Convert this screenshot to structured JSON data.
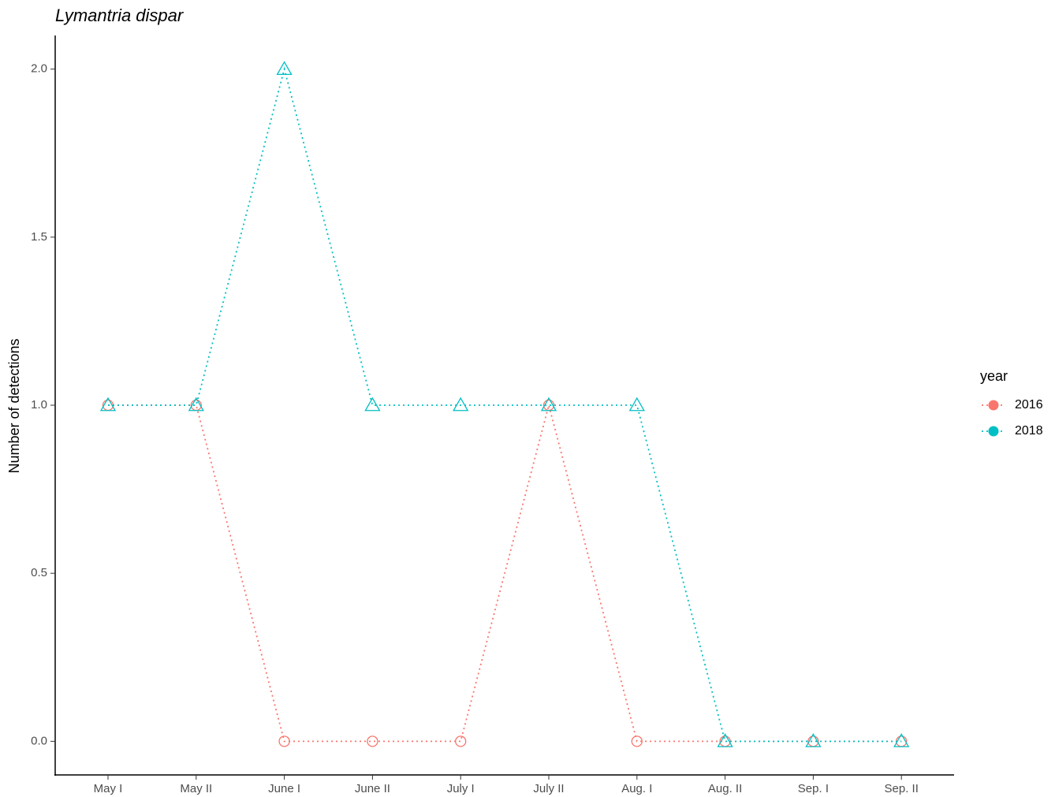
{
  "chart_data": {
    "type": "line",
    "title": "Lymantria dispar",
    "y_label": "Number of detections",
    "legend_title": "year",
    "categories": [
      "May I",
      "May II",
      "June I",
      "June II",
      "July I",
      "July II",
      "Aug. I",
      "Aug. II",
      "Sep. I",
      "Sep. II"
    ],
    "series": [
      {
        "name": "2016",
        "color": "#F8766D",
        "shape": "circle",
        "values": [
          1,
          1,
          0,
          0,
          0,
          1,
          0,
          0,
          0,
          0
        ]
      },
      {
        "name": "2018",
        "color": "#00BFC4",
        "shape": "triangle",
        "values": [
          1,
          1,
          2,
          1,
          1,
          1,
          1,
          0,
          0,
          0
        ]
      }
    ],
    "ylim": [
      -0.1,
      2.1
    ],
    "yticks": [
      {
        "value": 0,
        "label": "0.0"
      },
      0.5,
      {
        "value": 1,
        "label": "1.0"
      },
      1.5,
      {
        "value": 2,
        "label": "2.0"
      }
    ],
    "line_style": "dotted",
    "legend": "right"
  }
}
